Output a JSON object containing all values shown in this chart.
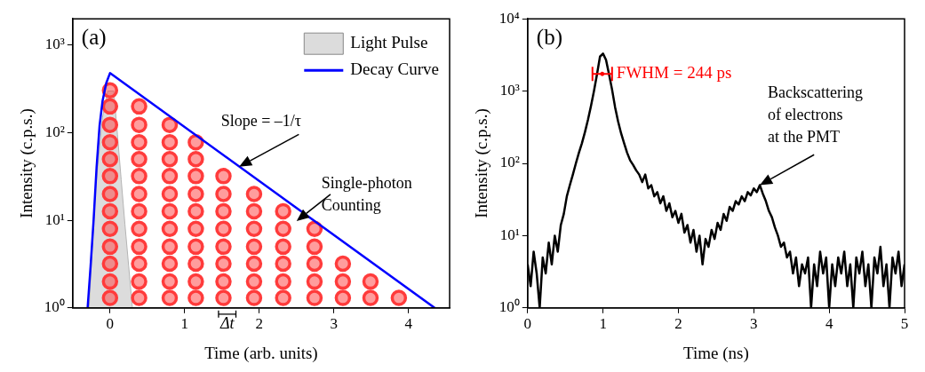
{
  "chart_data": [
    {
      "type": "line",
      "xlabel": "Time (arb. units)",
      "ylabel": "Intensity (c.p.s.)",
      "xlim": [
        -0.5,
        4.55
      ],
      "ylim": [
        1,
        2000
      ],
      "xticks": [
        0,
        1,
        2,
        3,
        4
      ],
      "yticks": [
        {
          "value": 1,
          "label": "10⁰"
        },
        {
          "value": 10,
          "label": "10¹"
        },
        {
          "value": 100,
          "label": "10²"
        },
        {
          "value": 1000,
          "label": "10³"
        }
      ],
      "log": "y",
      "legend": "top right",
      "series": [
        {
          "type": "area",
          "name": "Light Pulse",
          "color": "#dcdcdc",
          "x": [
            -0.28,
            -0.2,
            -0.1,
            -0.03,
            0.05,
            0.1,
            0.15,
            0.2,
            0.25,
            0.3
          ],
          "values": [
            1,
            20,
            150,
            300,
            300,
            95,
            29,
            9,
            3,
            1
          ]
        },
        {
          "type": "scatter",
          "color": "#ff3b3b",
          "marker": "circle",
          "x": [
            0,
            0,
            0,
            0,
            0,
            0,
            0,
            0,
            0,
            0,
            0,
            0,
            0,
            0.39,
            0.39,
            0.39,
            0.39,
            0.39,
            0.39,
            0.39,
            0.39,
            0.39,
            0.39,
            0.39,
            0.39,
            0.8,
            0.8,
            0.8,
            0.8,
            0.8,
            0.8,
            0.8,
            0.8,
            0.8,
            0.8,
            0.8,
            1.15,
            1.15,
            1.15,
            1.15,
            1.15,
            1.15,
            1.15,
            1.15,
            1.15,
            1.15,
            1.52,
            1.52,
            1.52,
            1.52,
            1.52,
            1.52,
            1.52,
            1.52,
            1.93,
            1.93,
            1.93,
            1.93,
            1.93,
            1.93,
            1.93,
            2.32,
            2.32,
            2.32,
            2.32,
            2.32,
            2.32,
            2.74,
            2.74,
            2.74,
            2.74,
            2.74,
            3.12,
            3.12,
            3.12,
            3.49,
            3.49,
            3.87
          ],
          "values": [
            1.3,
            2,
            3.2,
            5,
            8,
            12.7,
            20,
            32,
            50,
            78,
            123,
            200,
            305,
            1.3,
            2,
            3.2,
            5,
            8,
            12.7,
            20,
            32,
            50,
            78,
            123,
            200,
            1.3,
            2,
            3.2,
            5,
            8,
            12.7,
            20,
            32,
            50,
            78,
            123,
            1.3,
            2,
            3.2,
            5,
            8,
            12.7,
            20,
            32,
            50,
            78,
            1.3,
            2,
            3.2,
            5,
            8,
            12.7,
            20,
            32,
            1.3,
            2,
            3.2,
            5,
            8,
            12.7,
            20,
            1.3,
            2,
            3.2,
            5,
            8,
            12.7,
            1.3,
            2,
            3.2,
            5,
            8,
            1.3,
            2,
            3.2,
            1.3,
            2,
            1.3
          ]
        },
        {
          "name": "Decay Curve",
          "color": "#0000ff",
          "x": [
            -0.3,
            -0.26,
            -0.22,
            -0.18,
            -0.14,
            -0.1,
            -0.05,
            0,
            4.35
          ],
          "values": [
            1,
            3,
            10,
            40,
            120,
            230,
            370,
            480,
            1
          ]
        }
      ],
      "annotations": [
        "(a)",
        {
          "text": "Slope = –1/τ",
          "x": 1.73,
          "y": 41
        },
        "Single-photon\nCounting",
        "Δt"
      ]
    },
    {
      "type": "line",
      "xlabel": "Time (ns)",
      "ylabel": "Intensity (c.p.s.)",
      "xlim": [
        0,
        5
      ],
      "ylim": [
        1,
        10000
      ],
      "xticks": [
        0,
        1,
        2,
        3,
        4,
        5
      ],
      "yticks": [
        {
          "value": 1,
          "label": "10⁰"
        },
        {
          "value": 10,
          "label": "10¹"
        },
        {
          "value": 100,
          "label": "10²"
        },
        {
          "value": 1000,
          "label": "10³"
        },
        {
          "value": 10000,
          "label": "10⁴"
        }
      ],
      "log": "y",
      "legend": false,
      "x": [
        0,
        0.04,
        0.08,
        0.12,
        0.16,
        0.2,
        0.24,
        0.28,
        0.32,
        0.36,
        0.4,
        0.44,
        0.48,
        0.52,
        0.56,
        0.6,
        0.64,
        0.68,
        0.72,
        0.76,
        0.8,
        0.84,
        0.88,
        0.92,
        0.96,
        1,
        1.04,
        1.08,
        1.12,
        1.16,
        1.2,
        1.24,
        1.28,
        1.32,
        1.36,
        1.4,
        1.44,
        1.48,
        1.52,
        1.56,
        1.6,
        1.64,
        1.68,
        1.72,
        1.76,
        1.8,
        1.84,
        1.88,
        1.92,
        1.96,
        2,
        2.04,
        2.08,
        2.12,
        2.16,
        2.2,
        2.24,
        2.28,
        2.32,
        2.36,
        2.4,
        2.44,
        2.48,
        2.52,
        2.56,
        2.6,
        2.64,
        2.68,
        2.72,
        2.76,
        2.8,
        2.84,
        2.88,
        2.92,
        2.96,
        3,
        3.04,
        3.08,
        3.12,
        3.16,
        3.2,
        3.24,
        3.28,
        3.32,
        3.36,
        3.4,
        3.44,
        3.48,
        3.52,
        3.56,
        3.6,
        3.64,
        3.68,
        3.72,
        3.76,
        3.8,
        3.84,
        3.88,
        3.92,
        3.96,
        4,
        4.04,
        4.08,
        4.12,
        4.16,
        4.2,
        4.24,
        4.28,
        4.32,
        4.36,
        4.4,
        4.44,
        4.48,
        4.52,
        4.56,
        4.6,
        4.64,
        4.68,
        4.72,
        4.76,
        4.8,
        4.84,
        4.88,
        4.92,
        4.96,
        5
      ],
      "series": [
        {
          "color": "#000000",
          "values": [
            4,
            2,
            6,
            3,
            1,
            5,
            3,
            8,
            4,
            10,
            6,
            14,
            20,
            35,
            50,
            70,
            100,
            140,
            190,
            270,
            400,
            620,
            1000,
            1700,
            3000,
            3300,
            2700,
            1700,
            1050,
            600,
            380,
            260,
            190,
            140,
            110,
            95,
            80,
            70,
            55,
            70,
            45,
            50,
            35,
            40,
            28,
            35,
            22,
            28,
            18,
            22,
            15,
            20,
            11,
            14,
            8,
            12,
            6,
            10,
            4,
            9,
            7,
            12,
            9,
            15,
            12,
            20,
            16,
            25,
            22,
            30,
            27,
            35,
            30,
            40,
            36,
            45,
            40,
            50,
            38,
            30,
            22,
            18,
            13,
            10,
            7,
            8,
            5,
            6,
            3,
            5,
            2,
            4,
            3,
            5,
            1,
            4,
            2,
            6,
            3,
            5,
            1,
            4,
            2,
            5,
            3,
            6,
            2,
            4,
            1,
            5,
            3,
            6,
            2,
            4,
            1,
            5,
            3,
            7,
            2,
            4,
            1,
            5,
            3,
            6,
            2,
            4
          ]
        },
        {
          "type": "scatter",
          "name": "FWHM = 244 ps",
          "color": "#ff0000",
          "x": [
            0.99
          ],
          "values": [
            1730
          ],
          "xerrors": [
            0.13
          ]
        }
      ],
      "annotations": [
        "(b)",
        {
          "text": "Backscattering\nof electrons\nat the PMT",
          "x": 3.08,
          "y": 50
        }
      ]
    }
  ]
}
